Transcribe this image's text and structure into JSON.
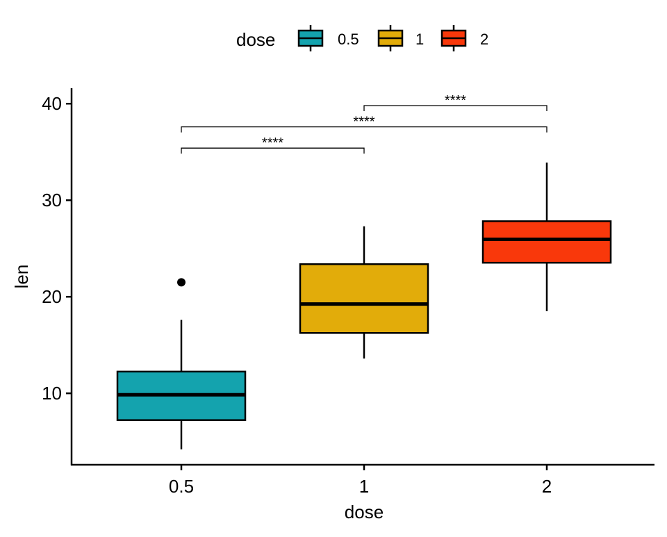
{
  "chart_data": {
    "type": "boxplot",
    "xlabel": "dose",
    "ylabel": "len",
    "categories": [
      "0.5",
      "1",
      "2"
    ],
    "yticks": [
      10,
      20,
      30,
      40
    ],
    "ylim": [
      2.6,
      41.6
    ],
    "grid": false,
    "legend": {
      "title": "dose",
      "position": "top",
      "entries": [
        "0.5",
        "1",
        "2"
      ]
    },
    "colors": [
      "#14A3AE",
      "#E2AC0A",
      "#F9380B"
    ],
    "boxes": [
      {
        "category": "0.5",
        "min": 4.2,
        "q1": 7.225,
        "median": 9.85,
        "q3": 12.25,
        "max": 17.6,
        "outliers": [
          21.5
        ]
      },
      {
        "category": "1",
        "min": 13.6,
        "q1": 16.25,
        "median": 19.25,
        "q3": 23.375,
        "max": 27.3,
        "outliers": []
      },
      {
        "category": "2",
        "min": 18.5,
        "q1": 23.525,
        "median": 25.95,
        "q3": 27.825,
        "max": 33.9,
        "outliers": []
      }
    ],
    "comparisons": [
      {
        "from": "0.5",
        "to": "1",
        "y": 35.4,
        "label": "****"
      },
      {
        "from": "0.5",
        "to": "2",
        "y": 37.6,
        "label": "****"
      },
      {
        "from": "1",
        "to": "2",
        "y": 39.8,
        "label": "****"
      }
    ]
  }
}
